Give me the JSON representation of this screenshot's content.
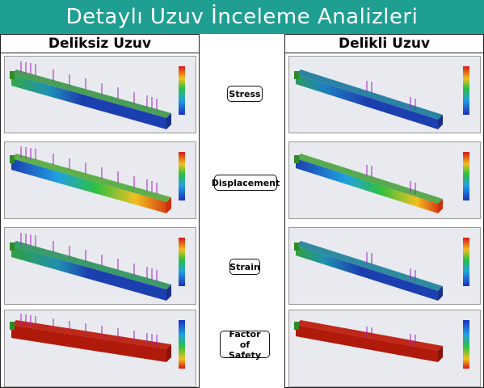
{
  "title": "Detaylı Uzuv İnceleme Analizleri",
  "left_column": {
    "heading": "Deliksiz  Uzuv"
  },
  "right_column": {
    "heading": "Delikli  Uzuv"
  },
  "analysis_types": [
    "Stress",
    "Displacement",
    "Strain",
    "Factor of\nSafety"
  ],
  "colors": {
    "banner": "#1e9f92",
    "arrow": "#a020c0",
    "beam_red": "#b01a0a",
    "beam_blue": "#1c3fb0",
    "beam_green": "#2aa040"
  },
  "icons": [
    "fixture-icon",
    "load-arrow-icon",
    "colorbar-legend"
  ]
}
